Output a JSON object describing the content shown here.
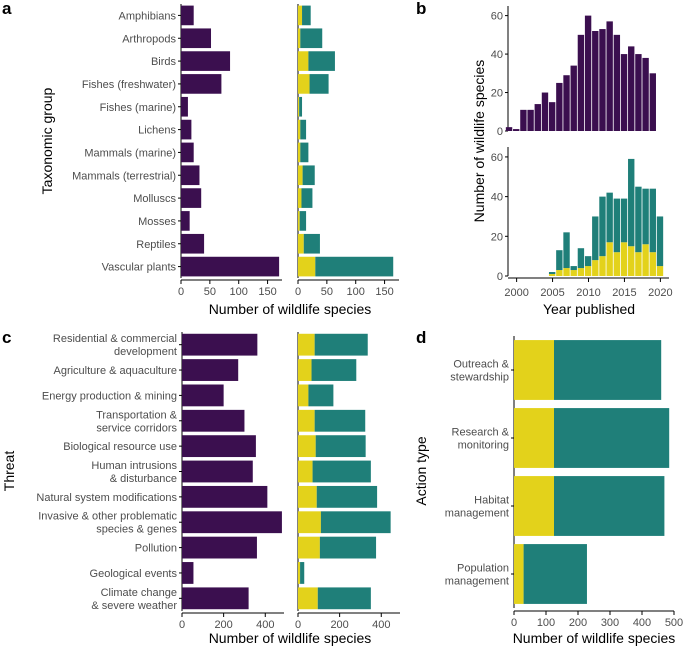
{
  "colors": {
    "purple": "#3b0f4f",
    "yellow": "#e3d21b",
    "teal": "#1f7f79",
    "axis": "#000000",
    "tick_text": "#4d4d4d"
  },
  "chart_data": [
    {
      "panel": "a",
      "type": "bar",
      "orientation": "horizontal",
      "ylabel": "Taxonomic group",
      "xlabel": "Number of wildlife species",
      "categories": [
        "Amphibians",
        "Arthropods",
        "Birds",
        "Fishes (freshwater)",
        "Fishes (marine)",
        "Lichens",
        "Mammals (marine)",
        "Mammals (terrestrial)",
        "Molluscs",
        "Mosses",
        "Reptiles",
        "Vascular plants"
      ],
      "left": {
        "values": [
          22,
          52,
          85,
          70,
          12,
          18,
          22,
          32,
          35,
          15,
          40,
          170
        ],
        "xlim": [
          0,
          175
        ],
        "ticks": [
          0,
          50,
          100,
          150
        ]
      },
      "right": {
        "series": [
          {
            "name": "yellow",
            "values": [
              7,
              4,
              18,
              20,
              2,
              4,
              4,
              8,
              6,
              3,
              10,
              30
            ]
          },
          {
            "name": "teal",
            "values": [
              15,
              38,
              46,
              33,
              5,
              10,
              14,
              21,
              19,
              11,
              28,
              135
            ]
          }
        ],
        "xlim": [
          0,
          175
        ],
        "ticks": [
          0,
          50,
          100,
          150
        ]
      }
    },
    {
      "panel": "b",
      "type": "histogram",
      "ylabel": "Number of wildlife species",
      "xlabel": "Year published",
      "x": [
        1999,
        2000,
        2001,
        2002,
        2003,
        2004,
        2005,
        2006,
        2007,
        2008,
        2009,
        2010,
        2011,
        2012,
        2013,
        2014,
        2015,
        2016,
        2017,
        2018,
        2019,
        2020
      ],
      "top": {
        "values": [
          2,
          1,
          11,
          11,
          14,
          20,
          15,
          25,
          29,
          34,
          50,
          60,
          52,
          53,
          57,
          50,
          40,
          44,
          40,
          38,
          30,
          0
        ],
        "ylim": [
          0,
          65
        ],
        "ticks": [
          0,
          20,
          40,
          60
        ]
      },
      "bottom": {
        "series": [
          {
            "name": "yellow",
            "values": [
              0,
              0,
              0,
              0,
              0,
              0,
              1,
              3,
              4,
              3,
              4,
              5,
              8,
              10,
              17,
              12,
              17,
              15,
              12,
              16,
              12,
              5
            ]
          },
          {
            "name": "teal",
            "values": [
              0,
              0,
              0,
              0,
              0,
              0,
              1,
              10,
              18,
              2,
              10,
              5,
              22,
              30,
              25,
              27,
              22,
              44,
              33,
              28,
              32,
              25
            ]
          }
        ],
        "ylim": [
          0,
          65
        ],
        "ticks": [
          0,
          20,
          40,
          60
        ]
      },
      "xticks": [
        2000,
        2005,
        2010,
        2015,
        2020
      ]
    },
    {
      "panel": "c",
      "type": "bar",
      "orientation": "horizontal",
      "ylabel": "Threat",
      "xlabel": "Number of wildlife species",
      "categories": [
        [
          "Residential & commercial",
          "development"
        ],
        [
          "Agriculture & aquaculture"
        ],
        [
          "Energy production & mining"
        ],
        [
          "Transportation &",
          "service corridors"
        ],
        [
          "Biological resource use"
        ],
        [
          "Human intrusions",
          "& disturbance"
        ],
        [
          "Natural system modifications"
        ],
        [
          "Invasive & other problematic",
          "species & genes"
        ],
        [
          "Pollution"
        ],
        [
          "Geological events"
        ],
        [
          "Climate change",
          "& severe weather"
        ]
      ],
      "left": {
        "values": [
          362,
          270,
          200,
          300,
          355,
          340,
          410,
          480,
          360,
          55,
          320
        ],
        "xlim": [
          0,
          490
        ],
        "ticks": [
          0,
          200,
          400
        ]
      },
      "right": {
        "series": [
          {
            "name": "yellow",
            "values": [
              80,
              65,
              50,
              80,
              85,
              70,
              90,
              110,
              105,
              10,
              95
            ]
          },
          {
            "name": "teal",
            "values": [
              255,
              215,
              120,
              243,
              240,
              280,
              290,
              335,
              270,
              20,
              255
            ]
          }
        ],
        "xlim": [
          0,
          490
        ],
        "ticks": [
          0,
          200,
          400
        ]
      }
    },
    {
      "panel": "d",
      "type": "bar",
      "orientation": "horizontal",
      "ylabel": "Action type",
      "xlabel": "Number of wildlife species",
      "categories": [
        [
          "Outreach &",
          "stewardship"
        ],
        [
          "Research &",
          "monitoring"
        ],
        [
          "Habitat",
          "management"
        ],
        [
          "Population",
          "management"
        ]
      ],
      "series": [
        {
          "name": "yellow",
          "values": [
            125,
            125,
            125,
            30
          ]
        },
        {
          "name": "teal",
          "values": [
            335,
            360,
            345,
            198
          ]
        }
      ],
      "xlim": [
        0,
        500
      ],
      "ticks": [
        0,
        100,
        200,
        300,
        400,
        500
      ]
    }
  ],
  "panel_labels": [
    "a",
    "b",
    "c",
    "d"
  ]
}
